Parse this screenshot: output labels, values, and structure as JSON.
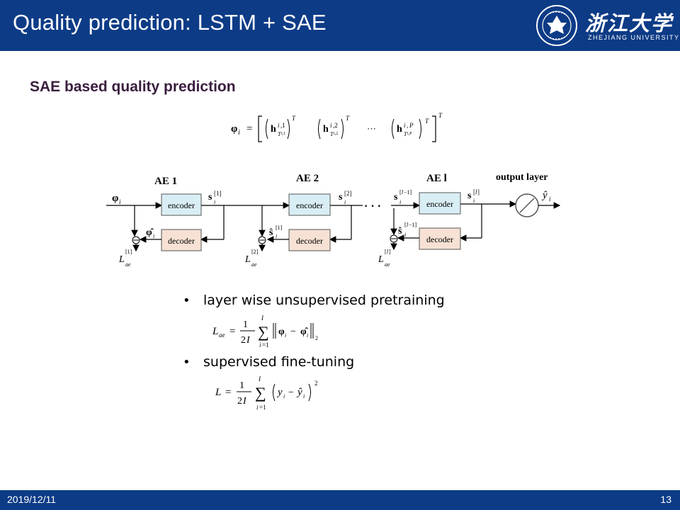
{
  "header": {
    "title": "Quality prediction: LSTM + SAE",
    "logo_cn": "浙江大学",
    "logo_en": "ZHEJIANG UNIVERSITY"
  },
  "section_title": "SAE based quality prediction",
  "diagram": {
    "ae_labels": [
      "AE 1",
      "AE 2",
      "AE l"
    ],
    "output_label": "output layer",
    "encoder_label": "encoder",
    "decoder_label": "decoder",
    "ellipsis": "· · ·"
  },
  "bullets": [
    "layer wise unsupervised pretraining",
    "supervised fine-tuning"
  ],
  "footer": {
    "date": "2019/12/11",
    "page": "13"
  },
  "colors": {
    "header_bg": "#0d3b86",
    "title_color": "#3a1e3e",
    "encoder_fill": "#d9eef4",
    "decoder_fill": "#f6e1d4"
  }
}
